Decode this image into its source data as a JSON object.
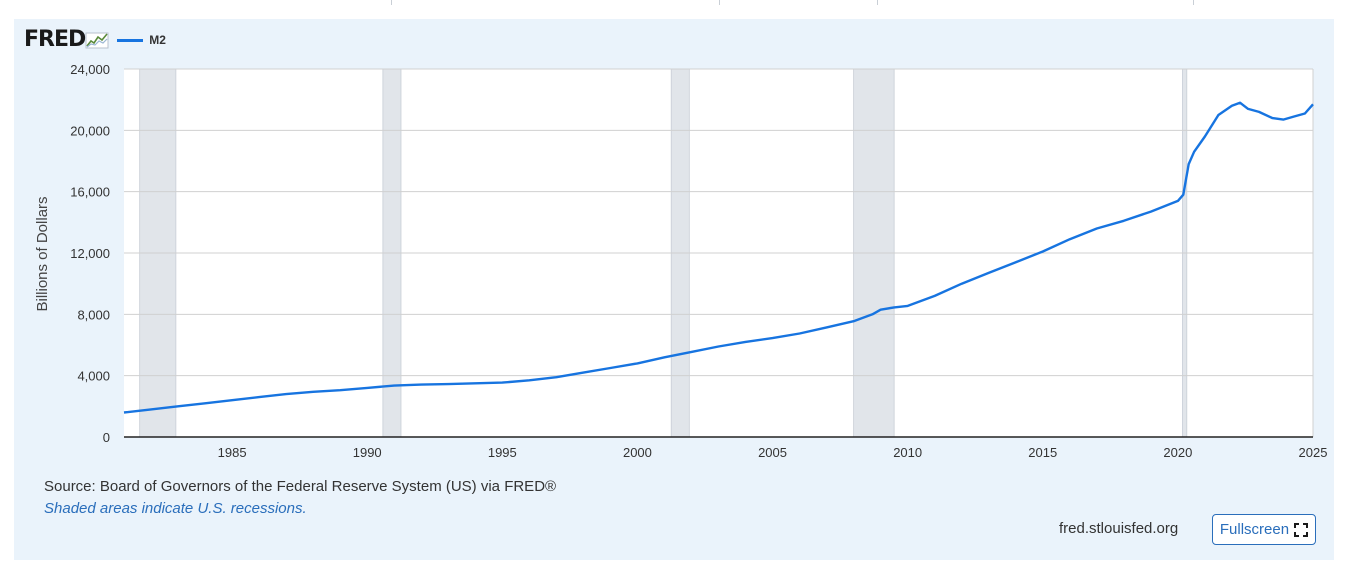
{
  "header": {
    "logo_text": "FRED",
    "legend_label": "M2"
  },
  "footer": {
    "source": "Source: Board of Governors of the Federal Reserve System (US) via FRED®",
    "note": "Shaded areas indicate U.S. recessions.",
    "site": "fred.stlouisfed.org",
    "fullscreen_label": "Fullscreen"
  },
  "colors": {
    "series": "#1774e0",
    "recession": "#e1e5ea",
    "panel": "#eaf3fb",
    "grid": "#d0d0d0",
    "link": "#2a6ebb"
  },
  "icons": [
    "fred-chart-icon",
    "fullscreen-icon"
  ],
  "chart_data": {
    "type": "line",
    "title": "",
    "xlabel": "",
    "ylabel": "Billions of Dollars",
    "xlim": [
      1981.0,
      2025.0
    ],
    "ylim": [
      0,
      24000
    ],
    "yticks": [
      "0",
      "4,000",
      "8,000",
      "12,000",
      "16,000",
      "20,000",
      "24,000"
    ],
    "xticks": [
      "1985",
      "1990",
      "1995",
      "2000",
      "2005",
      "2010",
      "2015",
      "2020",
      "2025"
    ],
    "grid": true,
    "legend": "top-left",
    "recessions": [
      [
        1981.58,
        1982.92
      ],
      [
        1990.58,
        1991.25
      ],
      [
        2001.25,
        2001.92
      ],
      [
        2008.0,
        2009.5
      ],
      [
        2020.17,
        2020.33
      ]
    ],
    "series": [
      {
        "name": "M2",
        "x": [
          1981.0,
          1982.0,
          1983.0,
          1984.0,
          1985.0,
          1986.0,
          1987.0,
          1988.0,
          1989.0,
          1990.0,
          1991.0,
          1992.0,
          1993.0,
          1994.0,
          1995.0,
          1996.0,
          1997.0,
          1998.0,
          1999.0,
          2000.0,
          2001.0,
          2002.0,
          2003.0,
          2004.0,
          2005.0,
          2006.0,
          2007.0,
          2008.0,
          2008.7,
          2009.0,
          2009.5,
          2010.0,
          2011.0,
          2012.0,
          2013.0,
          2014.0,
          2015.0,
          2016.0,
          2017.0,
          2018.0,
          2019.0,
          2020.0,
          2020.2,
          2020.4,
          2020.6,
          2021.0,
          2021.5,
          2022.0,
          2022.3,
          2022.6,
          2023.0,
          2023.5,
          2023.9,
          2024.3,
          2024.7,
          2025.0
        ],
        "values": [
          1600,
          1800,
          2000,
          2200,
          2400,
          2600,
          2800,
          2950,
          3050,
          3200,
          3350,
          3420,
          3450,
          3500,
          3550,
          3700,
          3900,
          4200,
          4500,
          4800,
          5200,
          5550,
          5900,
          6200,
          6450,
          6750,
          7150,
          7550,
          8000,
          8300,
          8450,
          8550,
          9200,
          10000,
          10700,
          11400,
          12100,
          12900,
          13600,
          14100,
          14700,
          15400,
          15800,
          17800,
          18600,
          19600,
          21000,
          21600,
          21800,
          21400,
          21200,
          20800,
          20700,
          20900,
          21100,
          21700
        ]
      }
    ]
  }
}
